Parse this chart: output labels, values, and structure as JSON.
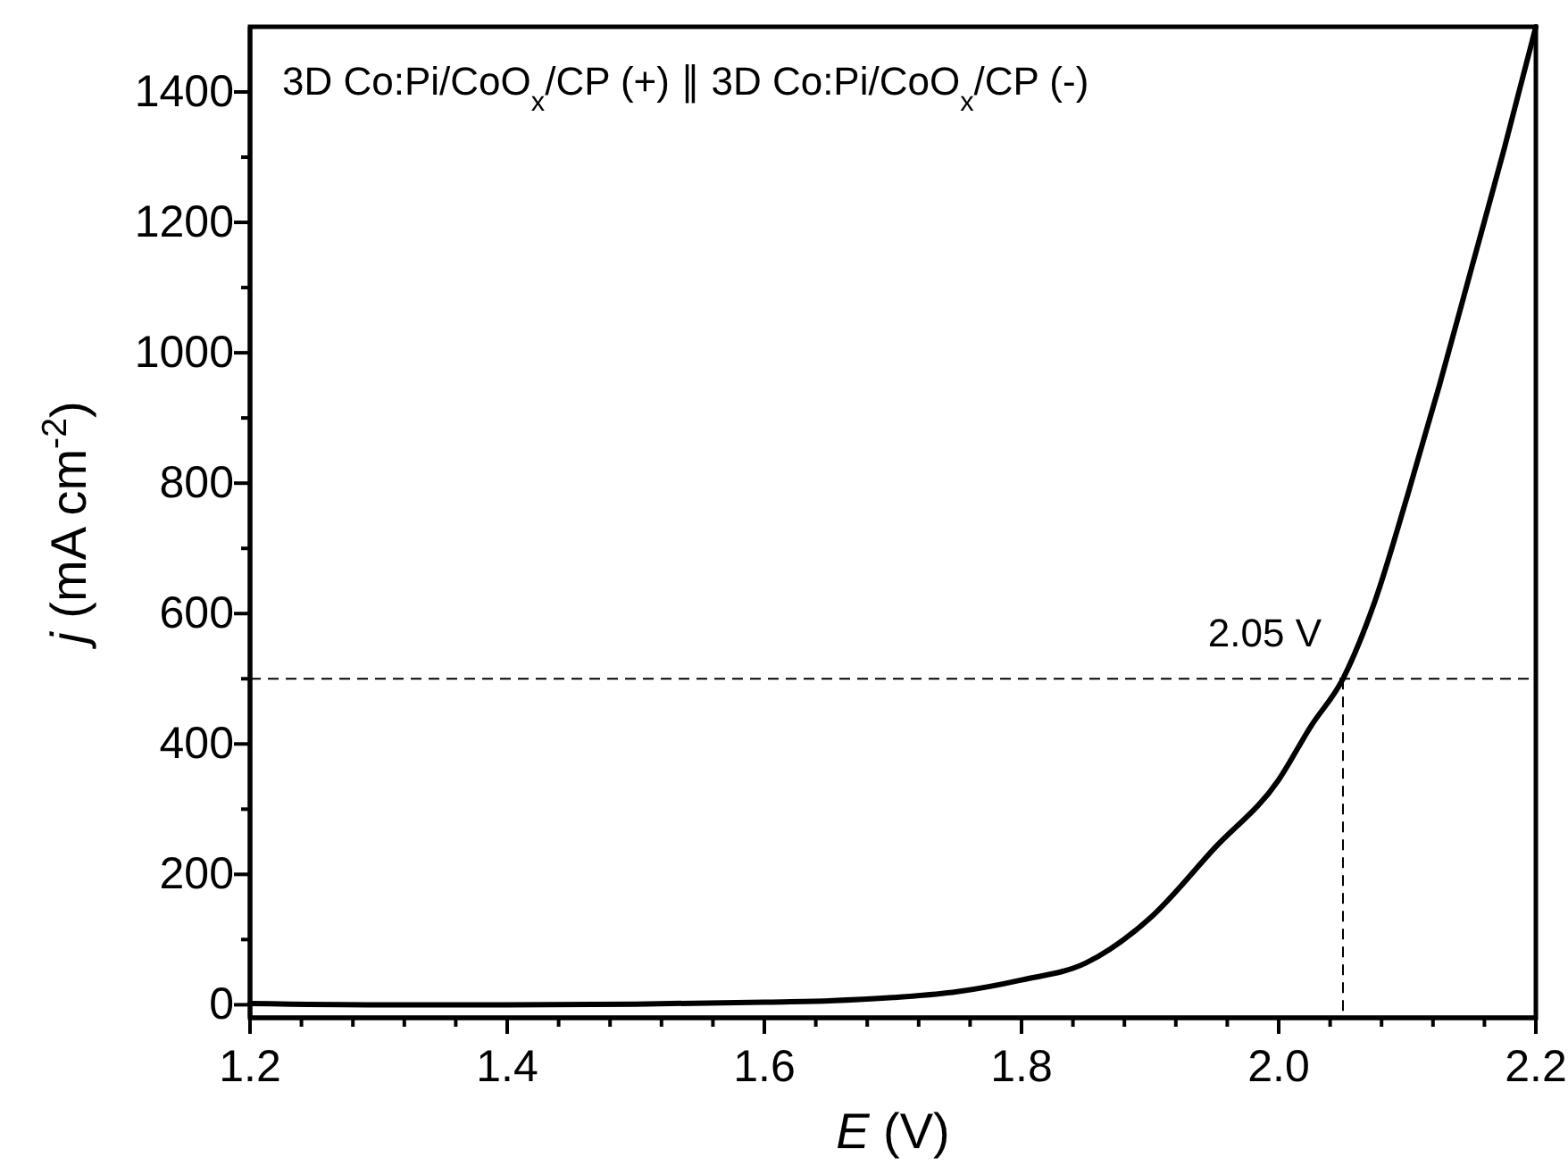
{
  "chart_data": {
    "type": "line",
    "xlabel": "E (V)",
    "ylabel": "j (mA cm$^{-2}$)",
    "annotations": [
      "3D Co:Pi/CoO$_{x}$/CP (+) ∥ 3D Co:Pi/CoO$_{x}$/CP (-)"
    ],
    "x": [
      1.2,
      1.3,
      1.4,
      1.5,
      1.6,
      1.65,
      1.7,
      1.75,
      1.8,
      1.85,
      1.9,
      1.95,
      2.0,
      2.025,
      2.05,
      2.075,
      2.1,
      2.125,
      2.15,
      2.175,
      2.2
    ],
    "series": [
      {
        "color": "#000000",
        "values": [
          2,
          0,
          0,
          1,
          4,
          6,
          11,
          20,
          38,
          64,
          133,
          240,
          345,
          427,
          500,
          620,
          780,
          950,
          1130,
          1310,
          1500
        ]
      }
    ],
    "xlim": [
      1.2,
      2.2
    ],
    "xticks": [
      1.2,
      {
        "value": 1.24,
        "label": null
      },
      {
        "value": 1.28,
        "label": null
      },
      {
        "value": 1.32,
        "label": null
      },
      {
        "value": 1.36,
        "label": null
      },
      1.4,
      {
        "value": 1.44,
        "label": null
      },
      {
        "value": 1.48,
        "label": null
      },
      {
        "value": 1.52,
        "label": null
      },
      {
        "value": 1.56,
        "label": null
      },
      1.6,
      {
        "value": 1.64,
        "label": null
      },
      {
        "value": 1.68,
        "label": null
      },
      {
        "value": 1.72,
        "label": null
      },
      {
        "value": 1.76,
        "label": null
      },
      1.8,
      {
        "value": 1.84,
        "label": null
      },
      {
        "value": 1.88,
        "label": null
      },
      {
        "value": 1.92,
        "label": null
      },
      {
        "value": 1.96,
        "label": null
      },
      {
        "value": 2,
        "label": "2.0"
      },
      {
        "value": 2.04,
        "label": null
      },
      {
        "value": 2.08,
        "label": null
      },
      {
        "value": 2.12,
        "label": null
      },
      {
        "value": 2.16,
        "label": null
      },
      2.2
    ],
    "ylim": [
      -20,
      1500
    ],
    "yticks": [
      0,
      {
        "value": 100,
        "label": null
      },
      200,
      {
        "value": 300,
        "label": null
      },
      400,
      {
        "value": 500,
        "label": null
      },
      600,
      {
        "value": 700,
        "label": null
      },
      800,
      {
        "value": 900,
        "label": null
      },
      1000,
      {
        "value": 1100,
        "label": null
      },
      1200,
      {
        "value": 1300,
        "label": null
      },
      1400
    ],
    "ref_lines": [
      {
        "axis": "y",
        "value": 500,
        "line_style": "dashed"
      },
      {
        "axis": "x",
        "value": 2.05,
        "label": "2.05 V",
        "line_style": "dashed"
      }
    ],
    "marker": "none",
    "line_style": "solid",
    "grid": false
  }
}
